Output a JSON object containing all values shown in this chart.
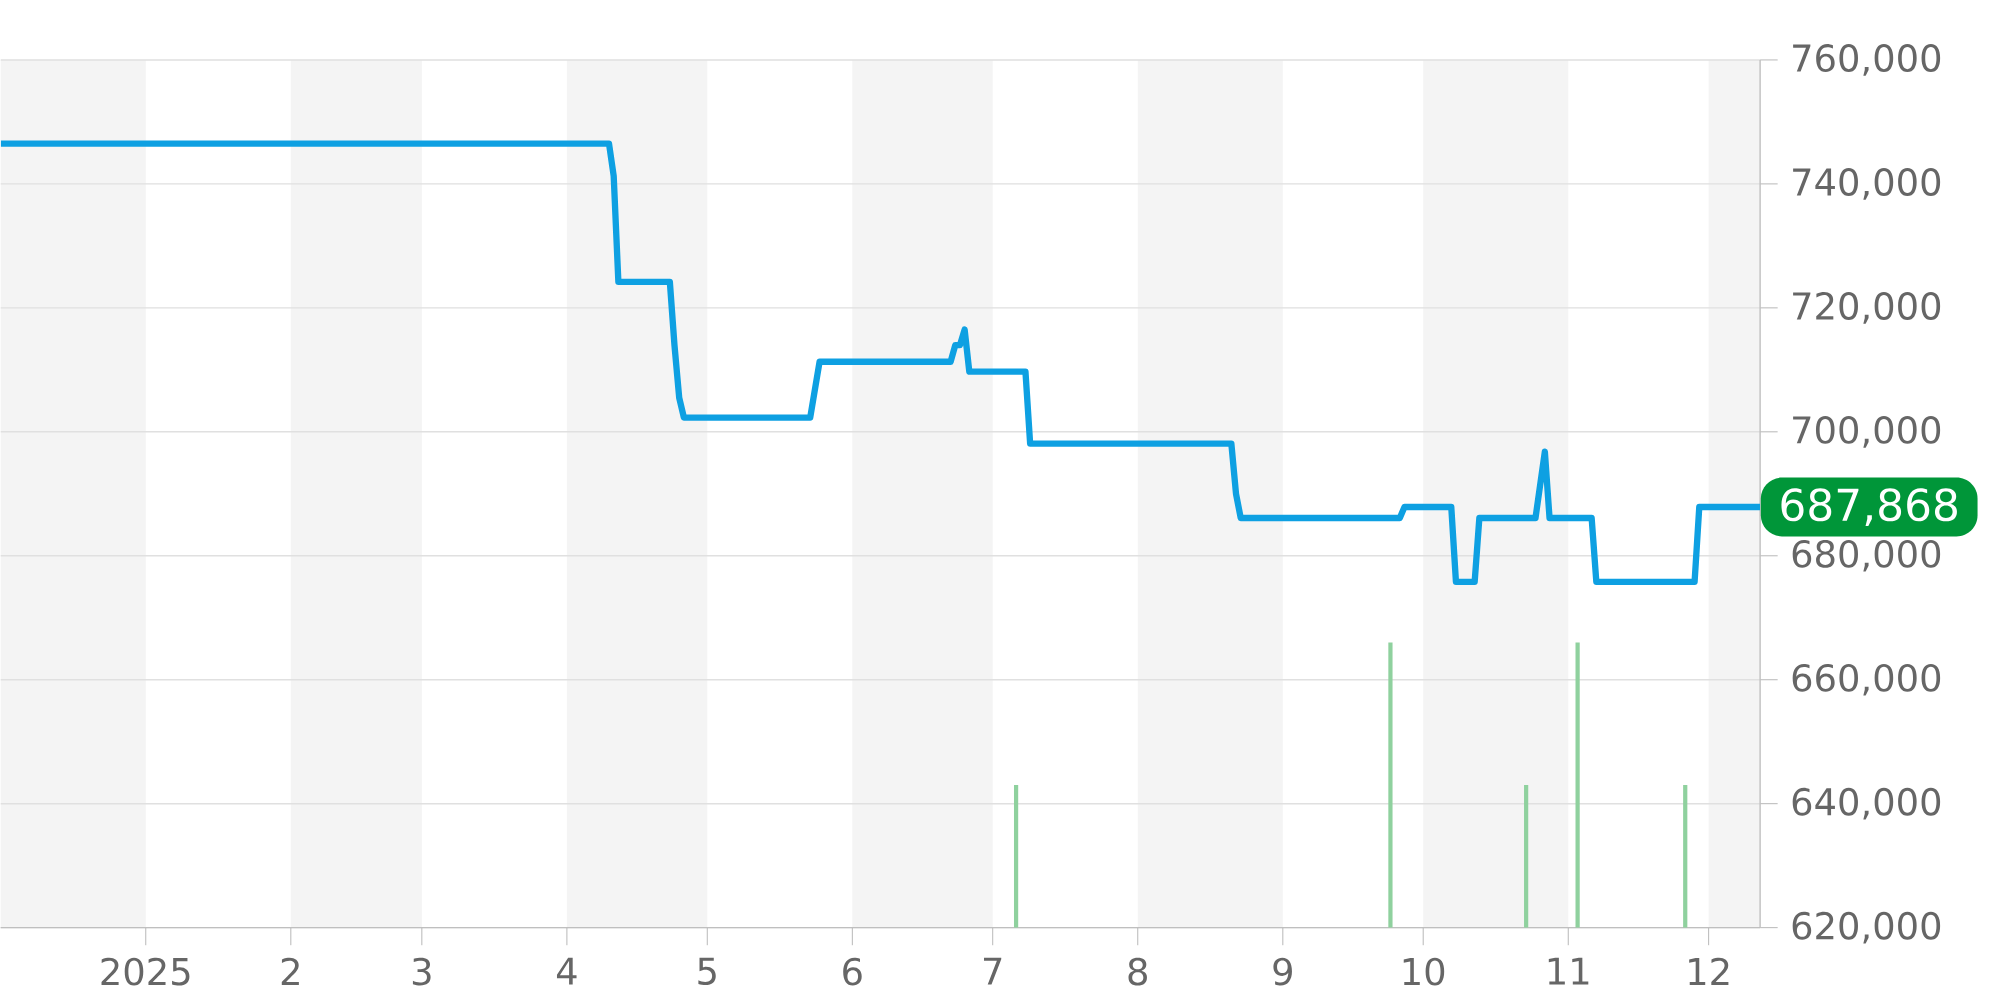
{
  "chart_data": {
    "type": "line",
    "xlim": [
      "2024-12-01",
      "2025-12-12"
    ],
    "ylim": [
      620000,
      760000
    ],
    "xticks": [
      {
        "value": "2025-01-01",
        "label": "2025"
      },
      {
        "value": "2025-02-01",
        "label": "2"
      },
      {
        "value": "2025-03-01",
        "label": "3"
      },
      {
        "value": "2025-04-01",
        "label": "4"
      },
      {
        "value": "2025-05-01",
        "label": "5"
      },
      {
        "value": "2025-06-01",
        "label": "6"
      },
      {
        "value": "2025-07-01",
        "label": "7"
      },
      {
        "value": "2025-08-01",
        "label": "8"
      },
      {
        "value": "2025-09-01",
        "label": "9"
      },
      {
        "value": "2025-10-01",
        "label": "10"
      },
      {
        "value": "2025-11-01",
        "label": "11"
      },
      {
        "value": "2025-12-01",
        "label": "12"
      }
    ],
    "yticks": [
      {
        "value": 620000,
        "label": "620,000"
      },
      {
        "value": 640000,
        "label": "640,000"
      },
      {
        "value": 660000,
        "label": "660,000"
      },
      {
        "value": 680000,
        "label": "680,000"
      },
      {
        "value": 700000,
        "label": "700,000"
      },
      {
        "value": 720000,
        "label": "720,000"
      },
      {
        "value": 740000,
        "label": "740,000"
      },
      {
        "value": 760000,
        "label": "760,000"
      }
    ],
    "grid": "y",
    "bands": [
      {
        "axis": "x",
        "from": "2024-12-01",
        "to": "2025-01-01",
        "color": "#f4f4f4"
      },
      {
        "axis": "x",
        "from": "2025-02-01",
        "to": "2025-03-01",
        "color": "#f4f4f4"
      },
      {
        "axis": "x",
        "from": "2025-04-01",
        "to": "2025-05-01",
        "color": "#f4f4f4"
      },
      {
        "axis": "x",
        "from": "2025-06-01",
        "to": "2025-07-01",
        "color": "#f4f4f4"
      },
      {
        "axis": "x",
        "from": "2025-08-01",
        "to": "2025-09-01",
        "color": "#f4f4f4"
      },
      {
        "axis": "x",
        "from": "2025-10-01",
        "to": "2025-11-01",
        "color": "#f4f4f4"
      },
      {
        "axis": "x",
        "from": "2025-12-01",
        "to": "2025-12-12",
        "color": "#f4f4f4"
      }
    ],
    "series": [
      {
        "type": "bar",
        "color": "#8fd19e",
        "x": [
          "2025-07-06",
          "2025-09-24",
          "2025-10-23",
          "2025-11-03",
          "2025-11-26"
        ],
        "values": [
          643000,
          666000,
          643000,
          666000,
          643000
        ]
      },
      {
        "color": "#0ea0e2",
        "x": [
          "2024-12-01",
          "2025-04-10",
          "2025-04-11",
          "2025-04-12",
          "2025-04-23",
          "2025-04-24",
          "2025-04-25",
          "2025-04-26",
          "2025-05-23",
          "2025-05-25",
          "2025-06-22",
          "2025-06-23",
          "2025-06-24",
          "2025-06-25",
          "2025-06-26",
          "2025-07-08",
          "2025-07-09",
          "2025-08-21",
          "2025-08-22",
          "2025-08-23",
          "2025-09-26",
          "2025-09-27",
          "2025-10-07",
          "2025-10-08",
          "2025-10-12",
          "2025-10-13",
          "2025-10-25",
          "2025-10-27",
          "2025-10-28",
          "2025-11-06",
          "2025-11-07",
          "2025-11-28",
          "2025-11-29",
          "2025-12-12"
        ],
        "values": [
          746500,
          746500,
          741300,
          724200,
          724200,
          713900,
          705500,
          702300,
          702300,
          711300,
          711300,
          714000,
          714000,
          716500,
          709700,
          709700,
          698100,
          698100,
          690000,
          686100,
          686100,
          687868,
          687868,
          675800,
          675800,
          686100,
          686100,
          696800,
          686100,
          686100,
          675800,
          675800,
          687868,
          687868
        ]
      }
    ],
    "annotations": [
      {
        "text": "687,868",
        "x": "2025-12-12",
        "y": 687868
      }
    ]
  }
}
